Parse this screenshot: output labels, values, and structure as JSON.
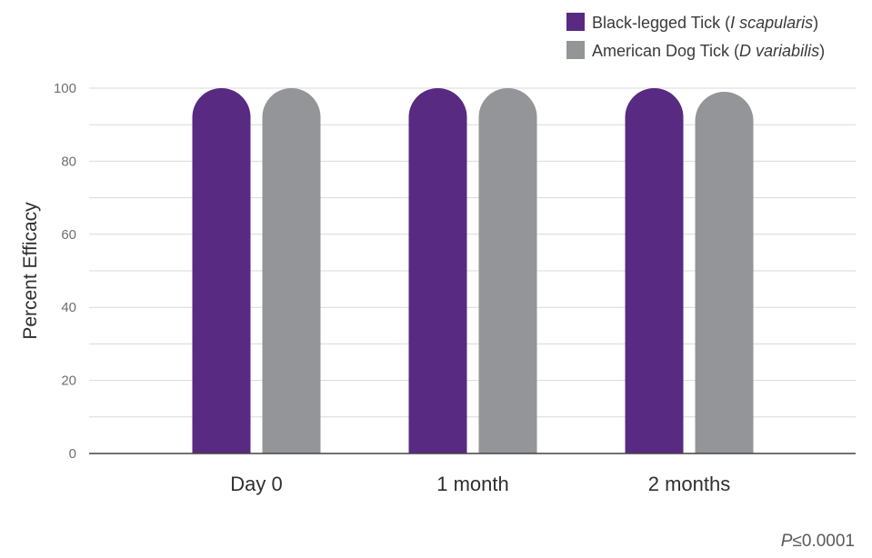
{
  "colors": {
    "series1": "#582a82",
    "series2": "#939598",
    "grid": "#d9d9d9",
    "axis": "#444444"
  },
  "chart_data": {
    "type": "bar",
    "categories": [
      "Day 0",
      "1 month",
      "2 months"
    ],
    "series": [
      {
        "name": "Black-legged Tick (I scapularis)",
        "name_main": "Black-legged Tick (",
        "name_italic": "I scapularis",
        "name_end": ")",
        "values": [
          100,
          100,
          100
        ]
      },
      {
        "name": "American Dog Tick (D variabilis)",
        "name_main": "American Dog Tick (",
        "name_italic": "D variabilis",
        "name_end": ")",
        "values": [
          100,
          100,
          99
        ]
      }
    ],
    "ylabel": "Percent Efficacy",
    "xlabel": "",
    "ylim": [
      0,
      100
    ],
    "yticks": [
      0,
      20,
      40,
      60,
      80,
      100
    ],
    "grid": true,
    "legend": "top-right",
    "bar_shape": "rounded-top",
    "annotation": {
      "prefix": "P",
      "text": "≤0.0001"
    }
  }
}
